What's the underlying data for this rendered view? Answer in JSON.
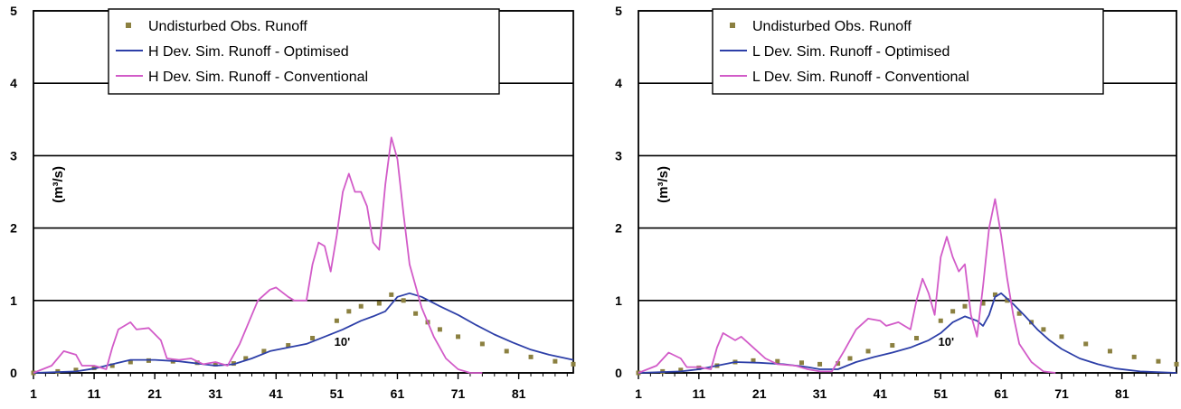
{
  "colors": {
    "observed": "#8b8040",
    "optimised": "#2d3fa8",
    "conventional": "#d25bc8",
    "grid": "#000000"
  },
  "chart_data": [
    {
      "type": "line",
      "ylabel": "(m³/s)",
      "ylim": [
        0,
        5
      ],
      "xlim": [
        1,
        90
      ],
      "y_ticks": [
        0,
        1,
        2,
        3,
        4,
        5
      ],
      "x_ticks": [
        1,
        11,
        21,
        31,
        41,
        51,
        61,
        71,
        81
      ],
      "grid": "horizontal",
      "legend": "top-center",
      "annotation": {
        "text": "10'",
        "x": 51,
        "y": 0.5
      },
      "series": [
        {
          "name": "Undisturbed Obs. Runoff",
          "style": "markers",
          "points": [
            [
              1,
              0.0
            ],
            [
              5,
              0.02
            ],
            [
              8,
              0.04
            ],
            [
              11,
              0.07
            ],
            [
              14,
              0.1
            ],
            [
              17,
              0.15
            ],
            [
              20,
              0.17
            ],
            [
              24,
              0.16
            ],
            [
              28,
              0.14
            ],
            [
              31,
              0.12
            ],
            [
              34,
              0.13
            ],
            [
              36,
              0.2
            ],
            [
              39,
              0.3
            ],
            [
              43,
              0.38
            ],
            [
              47,
              0.48
            ],
            [
              51,
              0.72
            ],
            [
              53,
              0.85
            ],
            [
              55,
              0.92
            ],
            [
              58,
              0.96
            ],
            [
              60,
              1.08
            ],
            [
              62,
              1.0
            ],
            [
              64,
              0.82
            ],
            [
              66,
              0.7
            ],
            [
              68,
              0.6
            ],
            [
              71,
              0.5
            ],
            [
              75,
              0.4
            ],
            [
              79,
              0.3
            ],
            [
              83,
              0.22
            ],
            [
              87,
              0.16
            ],
            [
              90,
              0.12
            ]
          ]
        },
        {
          "name": "H Dev. Sim. Runoff - Optimised",
          "style": "line",
          "points": [
            [
              1,
              0.0
            ],
            [
              8,
              0.02
            ],
            [
              11,
              0.06
            ],
            [
              14,
              0.12
            ],
            [
              17,
              0.18
            ],
            [
              21,
              0.18
            ],
            [
              25,
              0.16
            ],
            [
              29,
              0.12
            ],
            [
              31,
              0.1
            ],
            [
              34,
              0.12
            ],
            [
              37,
              0.2
            ],
            [
              40,
              0.3
            ],
            [
              43,
              0.35
            ],
            [
              46,
              0.4
            ],
            [
              49,
              0.5
            ],
            [
              52,
              0.6
            ],
            [
              55,
              0.72
            ],
            [
              57,
              0.78
            ],
            [
              59,
              0.85
            ],
            [
              61,
              1.05
            ],
            [
              63,
              1.1
            ],
            [
              65,
              1.05
            ],
            [
              68,
              0.92
            ],
            [
              71,
              0.8
            ],
            [
              74,
              0.66
            ],
            [
              77,
              0.53
            ],
            [
              80,
              0.42
            ],
            [
              83,
              0.32
            ],
            [
              86,
              0.25
            ],
            [
              90,
              0.18
            ]
          ]
        },
        {
          "name": "H Dev. Sim. Runoff - Conventional",
          "style": "line",
          "points": [
            [
              1,
              0.0
            ],
            [
              4,
              0.1
            ],
            [
              6,
              0.3
            ],
            [
              8,
              0.25
            ],
            [
              9,
              0.1
            ],
            [
              11,
              0.1
            ],
            [
              13,
              0.05
            ],
            [
              14,
              0.35
            ],
            [
              15,
              0.6
            ],
            [
              17,
              0.7
            ],
            [
              18,
              0.6
            ],
            [
              20,
              0.62
            ],
            [
              22,
              0.45
            ],
            [
              23,
              0.2
            ],
            [
              25,
              0.18
            ],
            [
              27,
              0.2
            ],
            [
              29,
              0.12
            ],
            [
              31,
              0.15
            ],
            [
              33,
              0.1
            ],
            [
              35,
              0.4
            ],
            [
              37,
              0.8
            ],
            [
              38,
              1.0
            ],
            [
              40,
              1.15
            ],
            [
              41,
              1.18
            ],
            [
              43,
              1.05
            ],
            [
              44,
              1.0
            ],
            [
              46,
              1.0
            ],
            [
              47,
              1.5
            ],
            [
              48,
              1.8
            ],
            [
              49,
              1.75
            ],
            [
              50,
              1.4
            ],
            [
              51,
              1.9
            ],
            [
              52,
              2.5
            ],
            [
              53,
              2.75
            ],
            [
              54,
              2.5
            ],
            [
              55,
              2.5
            ],
            [
              56,
              2.3
            ],
            [
              57,
              1.8
            ],
            [
              58,
              1.7
            ],
            [
              59,
              2.6
            ],
            [
              60,
              3.25
            ],
            [
              61,
              2.95
            ],
            [
              62,
              2.2
            ],
            [
              63,
              1.5
            ],
            [
              65,
              0.9
            ],
            [
              67,
              0.5
            ],
            [
              69,
              0.2
            ],
            [
              71,
              0.05
            ],
            [
              73,
              0.0
            ],
            [
              75,
              0.0
            ]
          ]
        }
      ]
    },
    {
      "type": "line",
      "ylabel": "(m³/s)",
      "ylim": [
        0,
        5
      ],
      "xlim": [
        1,
        90
      ],
      "y_ticks": [
        0,
        1,
        2,
        3,
        4,
        5
      ],
      "x_ticks": [
        1,
        11,
        21,
        31,
        41,
        51,
        61,
        71,
        81
      ],
      "grid": "horizontal",
      "legend": "top-center",
      "annotation": {
        "text": "10'",
        "x": 51,
        "y": 0.5
      },
      "series": [
        {
          "name": "Undisturbed Obs. Runoff",
          "style": "markers",
          "points": [
            [
              1,
              0.0
            ],
            [
              5,
              0.02
            ],
            [
              8,
              0.04
            ],
            [
              11,
              0.07
            ],
            [
              14,
              0.1
            ],
            [
              17,
              0.15
            ],
            [
              20,
              0.17
            ],
            [
              24,
              0.16
            ],
            [
              28,
              0.14
            ],
            [
              31,
              0.12
            ],
            [
              34,
              0.13
            ],
            [
              36,
              0.2
            ],
            [
              39,
              0.3
            ],
            [
              43,
              0.38
            ],
            [
              47,
              0.48
            ],
            [
              51,
              0.72
            ],
            [
              53,
              0.85
            ],
            [
              55,
              0.92
            ],
            [
              58,
              0.96
            ],
            [
              60,
              1.08
            ],
            [
              62,
              1.0
            ],
            [
              64,
              0.82
            ],
            [
              66,
              0.7
            ],
            [
              68,
              0.6
            ],
            [
              71,
              0.5
            ],
            [
              75,
              0.4
            ],
            [
              79,
              0.3
            ],
            [
              83,
              0.22
            ],
            [
              87,
              0.16
            ],
            [
              90,
              0.12
            ]
          ]
        },
        {
          "name": "L Dev. Sim. Runoff - Optimised",
          "style": "line",
          "points": [
            [
              1,
              0.0
            ],
            [
              8,
              0.02
            ],
            [
              11,
              0.05
            ],
            [
              14,
              0.1
            ],
            [
              17,
              0.15
            ],
            [
              21,
              0.14
            ],
            [
              25,
              0.12
            ],
            [
              29,
              0.08
            ],
            [
              31,
              0.05
            ],
            [
              34,
              0.05
            ],
            [
              37,
              0.15
            ],
            [
              40,
              0.22
            ],
            [
              43,
              0.28
            ],
            [
              46,
              0.35
            ],
            [
              49,
              0.45
            ],
            [
              51,
              0.55
            ],
            [
              53,
              0.7
            ],
            [
              55,
              0.78
            ],
            [
              57,
              0.72
            ],
            [
              58,
              0.65
            ],
            [
              59,
              0.8
            ],
            [
              60,
              1.05
            ],
            [
              61,
              1.1
            ],
            [
              63,
              0.95
            ],
            [
              65,
              0.78
            ],
            [
              67,
              0.6
            ],
            [
              69,
              0.45
            ],
            [
              71,
              0.33
            ],
            [
              74,
              0.2
            ],
            [
              77,
              0.12
            ],
            [
              80,
              0.06
            ],
            [
              84,
              0.02
            ],
            [
              90,
              0.0
            ]
          ]
        },
        {
          "name": "L Dev. Sim. Runoff - Conventional",
          "style": "line",
          "points": [
            [
              1,
              0.0
            ],
            [
              4,
              0.1
            ],
            [
              6,
              0.28
            ],
            [
              8,
              0.2
            ],
            [
              9,
              0.08
            ],
            [
              11,
              0.08
            ],
            [
              13,
              0.05
            ],
            [
              14,
              0.35
            ],
            [
              15,
              0.55
            ],
            [
              17,
              0.45
            ],
            [
              18,
              0.5
            ],
            [
              20,
              0.35
            ],
            [
              22,
              0.2
            ],
            [
              24,
              0.12
            ],
            [
              27,
              0.1
            ],
            [
              29,
              0.05
            ],
            [
              31,
              0.02
            ],
            [
              33,
              0.02
            ],
            [
              35,
              0.3
            ],
            [
              37,
              0.6
            ],
            [
              39,
              0.75
            ],
            [
              41,
              0.72
            ],
            [
              42,
              0.65
            ],
            [
              44,
              0.7
            ],
            [
              46,
              0.6
            ],
            [
              47,
              1.0
            ],
            [
              48,
              1.3
            ],
            [
              49,
              1.1
            ],
            [
              50,
              0.8
            ],
            [
              51,
              1.6
            ],
            [
              52,
              1.88
            ],
            [
              53,
              1.6
            ],
            [
              54,
              1.4
            ],
            [
              55,
              1.5
            ],
            [
              56,
              0.8
            ],
            [
              57,
              0.5
            ],
            [
              58,
              1.2
            ],
            [
              59,
              2.0
            ],
            [
              60,
              2.4
            ],
            [
              61,
              1.9
            ],
            [
              62,
              1.3
            ],
            [
              63,
              0.8
            ],
            [
              64,
              0.4
            ],
            [
              66,
              0.15
            ],
            [
              68,
              0.02
            ],
            [
              70,
              0.0
            ]
          ]
        }
      ]
    }
  ]
}
